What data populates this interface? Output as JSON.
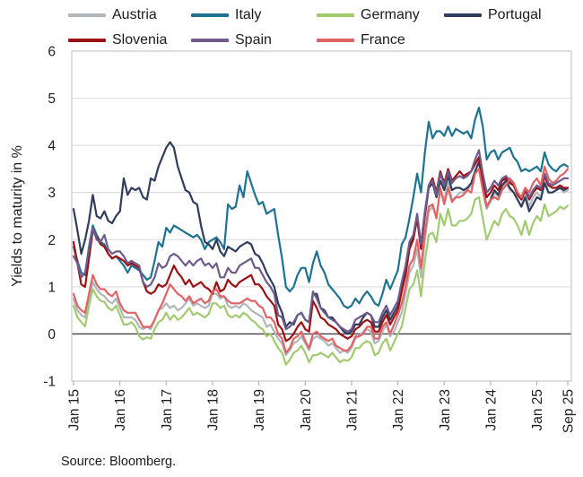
{
  "source_note": "Source: Bloomberg.",
  "chart_data": {
    "type": "line",
    "title": "",
    "ylabel": "Yields to maturity in %",
    "xlabel": "",
    "ylim": [
      -1,
      6
    ],
    "yticks": [
      6,
      5,
      4,
      3,
      2,
      1,
      0,
      -1
    ],
    "grid": "horizontal",
    "legend_position": "top",
    "zero_line": true,
    "frequency": "monthly from Jan 2015 to Sep 2025",
    "x_tick_labels": [
      "Jan 15",
      "Jan 16",
      "Jan 17",
      "Jan 18",
      "Jan 19",
      "Jan 20",
      "Jan 21",
      "Jan 22",
      "Jan 23",
      "Jan 24",
      "Jan 25",
      "Sep 25"
    ],
    "x_tick_positions": [
      0,
      12,
      24,
      36,
      48,
      60,
      72,
      84,
      96,
      108,
      120,
      128
    ],
    "grid_color": "#d9d9d9",
    "zero_line_color": "#404040",
    "border_color": "#c8c8c8",
    "tick_color": "#b3b3b3",
    "text_color": "#1f1f1f",
    "series": [
      {
        "name": "Austria",
        "color": "#b1b6bb",
        "values": [
          0.75,
          0.5,
          0.4,
          0.35,
          0.75,
          1.1,
          0.95,
          0.85,
          0.8,
          0.7,
          0.65,
          0.75,
          0.55,
          0.35,
          0.35,
          0.35,
          0.3,
          0.15,
          0.1,
          0.15,
          0.1,
          0.3,
          0.5,
          0.55,
          0.65,
          0.55,
          0.6,
          0.5,
          0.55,
          0.65,
          0.75,
          0.6,
          0.65,
          0.6,
          0.55,
          0.6,
          0.85,
          0.85,
          0.75,
          0.8,
          0.6,
          0.55,
          0.6,
          0.55,
          0.65,
          0.6,
          0.5,
          0.45,
          0.4,
          0.35,
          0.15,
          0.2,
          0.05,
          -0.1,
          -0.2,
          -0.45,
          -0.35,
          -0.2,
          -0.15,
          -0.05,
          -0.2,
          -0.35,
          -0.1,
          -0.05,
          -0.1,
          -0.15,
          -0.25,
          -0.2,
          -0.3,
          -0.4,
          -0.35,
          -0.4,
          -0.3,
          -0.1,
          -0.05,
          0.05,
          0.1,
          0.05,
          -0.2,
          -0.15,
          0.05,
          0.2,
          -0.05,
          0.05,
          0.25,
          0.45,
          0.85,
          1.3,
          1.45,
          1.8,
          1.2,
          2.0,
          2.6,
          2.7,
          2.5,
          3.05,
          2.85,
          3.2,
          2.85,
          2.9,
          3.0,
          3.0,
          3.05,
          3.15,
          3.4,
          3.5,
          3.05,
          2.65,
          2.8,
          3.0,
          2.9,
          3.1,
          3.2,
          3.05,
          3.0,
          2.85,
          2.7,
          2.95,
          2.7,
          2.9,
          3.0,
          2.9,
          3.25,
          3.0,
          3.0,
          3.05,
          3.1,
          3.0,
          3.05
        ]
      },
      {
        "name": "Italy",
        "color": "#1d7390",
        "values": [
          1.85,
          1.55,
          1.3,
          1.25,
          1.85,
          2.3,
          2.1,
          1.95,
          1.9,
          1.7,
          1.6,
          1.65,
          1.55,
          1.45,
          1.3,
          1.45,
          1.4,
          1.35,
          1.25,
          1.15,
          1.2,
          1.55,
          1.95,
          1.85,
          2.25,
          2.15,
          2.3,
          2.25,
          2.2,
          2.15,
          2.1,
          2.05,
          2.1,
          2.0,
          1.8,
          1.95,
          2.0,
          2.05,
          1.95,
          1.8,
          2.75,
          2.65,
          2.7,
          3.15,
          2.9,
          3.45,
          3.2,
          2.95,
          2.75,
          2.8,
          2.55,
          2.6,
          2.65,
          2.1,
          1.6,
          1.0,
          0.9,
          1.0,
          1.25,
          1.4,
          1.4,
          1.1,
          1.5,
          1.75,
          1.45,
          1.3,
          1.05,
          0.95,
          0.85,
          0.75,
          0.6,
          0.55,
          0.6,
          0.75,
          0.65,
          0.8,
          0.9,
          0.8,
          0.65,
          0.6,
          0.85,
          1.15,
          0.95,
          1.15,
          1.35,
          1.9,
          2.05,
          2.45,
          2.9,
          3.4,
          3.0,
          3.85,
          4.5,
          4.15,
          4.3,
          4.3,
          4.2,
          4.4,
          4.2,
          4.35,
          4.3,
          4.25,
          4.3,
          4.15,
          4.55,
          4.8,
          4.4,
          3.7,
          3.85,
          3.9,
          3.7,
          3.85,
          3.9,
          3.95,
          3.75,
          3.65,
          3.45,
          3.5,
          3.45,
          3.5,
          3.55,
          3.45,
          3.85,
          3.6,
          3.5,
          3.45,
          3.55,
          3.6,
          3.55
        ]
      },
      {
        "name": "Germany",
        "color": "#a2cb71",
        "values": [
          0.6,
          0.35,
          0.25,
          0.16,
          0.6,
          0.95,
          0.8,
          0.7,
          0.68,
          0.55,
          0.5,
          0.6,
          0.4,
          0.2,
          0.2,
          0.25,
          0.15,
          -0.05,
          -0.12,
          -0.07,
          -0.1,
          0.1,
          0.25,
          0.3,
          0.45,
          0.3,
          0.4,
          0.3,
          0.35,
          0.45,
          0.55,
          0.4,
          0.45,
          0.4,
          0.35,
          0.42,
          0.65,
          0.65,
          0.55,
          0.6,
          0.4,
          0.35,
          0.4,
          0.35,
          0.45,
          0.4,
          0.3,
          0.25,
          0.15,
          0.1,
          -0.05,
          0.0,
          -0.15,
          -0.3,
          -0.4,
          -0.65,
          -0.55,
          -0.4,
          -0.35,
          -0.25,
          -0.4,
          -0.6,
          -0.45,
          -0.45,
          -0.4,
          -0.45,
          -0.5,
          -0.4,
          -0.5,
          -0.6,
          -0.55,
          -0.57,
          -0.5,
          -0.3,
          -0.3,
          -0.2,
          -0.15,
          -0.2,
          -0.45,
          -0.4,
          -0.2,
          -0.1,
          -0.35,
          -0.18,
          0.0,
          0.15,
          0.55,
          0.95,
          1.05,
          1.35,
          0.8,
          1.55,
          2.1,
          2.15,
          1.95,
          2.55,
          2.3,
          2.65,
          2.3,
          2.3,
          2.4,
          2.4,
          2.45,
          2.55,
          2.85,
          2.9,
          2.45,
          2.0,
          2.2,
          2.4,
          2.3,
          2.55,
          2.65,
          2.5,
          2.45,
          2.3,
          2.1,
          2.4,
          2.1,
          2.35,
          2.5,
          2.4,
          2.75,
          2.5,
          2.55,
          2.6,
          2.7,
          2.65,
          2.72
        ]
      },
      {
        "name": "Portugal",
        "color": "#303d5c",
        "values": [
          2.65,
          2.2,
          1.7,
          2.0,
          2.4,
          2.95,
          2.5,
          2.45,
          2.6,
          2.4,
          2.35,
          2.5,
          2.6,
          3.3,
          2.95,
          3.1,
          3.05,
          3.1,
          2.9,
          2.85,
          3.3,
          3.25,
          3.55,
          3.75,
          3.95,
          4.07,
          3.95,
          3.55,
          3.3,
          3.05,
          3.0,
          2.8,
          2.75,
          2.3,
          1.95,
          1.9,
          1.8,
          2.0,
          1.75,
          1.65,
          1.85,
          1.8,
          1.75,
          1.85,
          1.9,
          1.95,
          1.9,
          1.7,
          1.65,
          1.5,
          1.3,
          1.15,
          1.0,
          0.65,
          0.45,
          0.15,
          0.25,
          0.2,
          0.4,
          0.45,
          0.3,
          0.25,
          0.85,
          0.85,
          0.55,
          0.5,
          0.35,
          0.35,
          0.25,
          0.15,
          0.05,
          0.0,
          0.05,
          0.2,
          0.2,
          0.35,
          0.45,
          0.4,
          0.15,
          0.15,
          0.35,
          0.5,
          0.3,
          0.45,
          0.6,
          0.95,
          1.3,
          1.85,
          2.05,
          2.45,
          1.85,
          2.5,
          3.1,
          3.2,
          2.9,
          3.25,
          3.05,
          3.35,
          3.05,
          3.1,
          3.1,
          3.05,
          3.1,
          3.2,
          3.45,
          3.65,
          3.1,
          2.7,
          2.85,
          3.05,
          2.95,
          3.15,
          3.25,
          3.1,
          3.0,
          2.85,
          2.7,
          2.9,
          2.6,
          2.75,
          2.9,
          2.85,
          3.2,
          3.0,
          3.0,
          3.05,
          3.1,
          3.05,
          3.1
        ]
      },
      {
        "name": "Slovenia",
        "color": "#9c1114",
        "values": [
          1.95,
          1.5,
          1.05,
          1.0,
          1.6,
          2.2,
          2.05,
          1.9,
          1.85,
          1.7,
          1.6,
          1.65,
          1.6,
          1.55,
          1.45,
          1.5,
          1.45,
          1.4,
          1.1,
          0.9,
          0.85,
          0.9,
          1.05,
          1.0,
          1.05,
          1.25,
          1.45,
          1.3,
          1.2,
          1.05,
          1.15,
          1.0,
          1.05,
          1.1,
          1.0,
          0.95,
          0.85,
          1.1,
          0.9,
          0.95,
          1.15,
          1.05,
          1.0,
          1.1,
          1.15,
          1.2,
          1.25,
          1.05,
          1.05,
          0.95,
          0.8,
          0.7,
          0.6,
          0.2,
          0.1,
          -0.15,
          -0.1,
          0.0,
          0.15,
          0.25,
          0.1,
          0.05,
          0.7,
          0.55,
          0.35,
          0.3,
          0.2,
          0.15,
          0.1,
          0.0,
          -0.05,
          -0.1,
          -0.05,
          0.1,
          0.15,
          0.25,
          0.3,
          0.25,
          0.05,
          0.05,
          0.25,
          0.4,
          0.2,
          0.35,
          0.5,
          0.9,
          1.25,
          1.8,
          2.0,
          2.45,
          1.8,
          2.55,
          3.15,
          3.3,
          3.0,
          3.45,
          3.2,
          3.5,
          3.25,
          3.35,
          3.45,
          3.35,
          3.4,
          3.45,
          3.6,
          3.75,
          3.25,
          2.9,
          3.0,
          3.15,
          3.05,
          3.25,
          3.3,
          3.2,
          3.15,
          2.95,
          2.85,
          3.05,
          2.85,
          3.0,
          3.1,
          3.05,
          3.35,
          3.15,
          3.1,
          3.1,
          3.15,
          3.1,
          3.1
        ]
      },
      {
        "name": "Spain",
        "color": "#6e5b8c",
        "values": [
          1.65,
          1.5,
          1.2,
          1.3,
          1.8,
          2.25,
          2.0,
          1.95,
          2.1,
          1.8,
          1.7,
          1.75,
          1.75,
          1.65,
          1.5,
          1.55,
          1.5,
          1.45,
          1.1,
          1.0,
          1.05,
          1.2,
          1.5,
          1.4,
          1.45,
          1.65,
          1.7,
          1.65,
          1.55,
          1.45,
          1.55,
          1.45,
          1.55,
          1.6,
          1.45,
          1.5,
          1.4,
          1.5,
          1.2,
          1.2,
          1.4,
          1.3,
          1.3,
          1.45,
          1.5,
          1.55,
          1.6,
          1.4,
          1.4,
          1.25,
          1.1,
          1.0,
          0.85,
          0.4,
          0.35,
          0.1,
          0.15,
          0.25,
          0.4,
          0.45,
          0.3,
          0.25,
          0.9,
          0.75,
          0.55,
          0.45,
          0.35,
          0.3,
          0.25,
          0.15,
          0.1,
          0.05,
          0.1,
          0.3,
          0.35,
          0.4,
          0.45,
          0.4,
          0.25,
          0.25,
          0.45,
          0.6,
          0.4,
          0.55,
          0.7,
          1.1,
          1.45,
          1.95,
          2.1,
          2.55,
          1.9,
          2.6,
          3.15,
          3.25,
          2.95,
          3.4,
          3.15,
          3.45,
          3.2,
          3.3,
          3.35,
          3.3,
          3.35,
          3.45,
          3.7,
          3.9,
          3.4,
          3.0,
          3.1,
          3.25,
          3.15,
          3.3,
          3.35,
          3.25,
          3.2,
          3.0,
          2.9,
          3.1,
          2.9,
          3.05,
          3.15,
          3.1,
          3.4,
          3.2,
          3.15,
          3.2,
          3.25,
          3.3,
          3.3
        ]
      },
      {
        "name": "France",
        "color": "#e06465",
        "values": [
          0.85,
          0.6,
          0.5,
          0.45,
          0.85,
          1.25,
          1.05,
          0.95,
          0.95,
          0.85,
          0.8,
          0.9,
          0.65,
          0.5,
          0.45,
          0.45,
          0.45,
          0.3,
          0.15,
          0.15,
          0.15,
          0.3,
          0.5,
          0.65,
          0.85,
          1.05,
          0.95,
          0.85,
          0.8,
          0.7,
          0.8,
          0.65,
          0.7,
          0.75,
          0.65,
          0.7,
          0.9,
          0.95,
          0.8,
          0.8,
          0.7,
          0.65,
          0.65,
          0.65,
          0.7,
          0.75,
          0.7,
          0.7,
          0.6,
          0.55,
          0.35,
          0.35,
          0.25,
          0.0,
          -0.1,
          -0.4,
          -0.3,
          -0.1,
          -0.05,
          0.05,
          -0.15,
          -0.3,
          0.0,
          0.05,
          -0.05,
          -0.1,
          -0.15,
          -0.1,
          -0.25,
          -0.3,
          -0.35,
          -0.35,
          -0.25,
          -0.05,
          -0.05,
          0.0,
          0.15,
          0.15,
          -0.1,
          -0.1,
          0.15,
          0.25,
          0.0,
          0.2,
          0.4,
          0.65,
          1.0,
          1.45,
          1.6,
          2.0,
          1.4,
          2.15,
          2.7,
          2.75,
          2.45,
          3.1,
          2.75,
          3.1,
          2.8,
          2.9,
          2.9,
          2.95,
          3.05,
          3.0,
          3.4,
          3.5,
          3.05,
          2.7,
          2.85,
          2.9,
          2.85,
          3.05,
          3.15,
          3.3,
          3.2,
          3.0,
          2.9,
          3.1,
          3.0,
          3.2,
          3.3,
          3.15,
          3.55,
          3.3,
          3.2,
          3.25,
          3.35,
          3.4,
          3.5
        ]
      }
    ]
  }
}
